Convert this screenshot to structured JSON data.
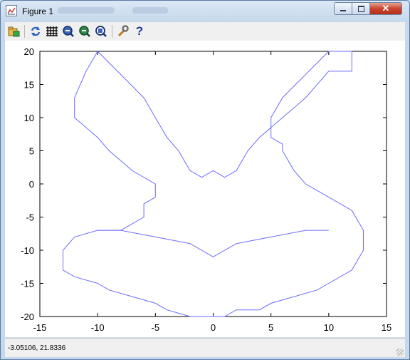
{
  "window": {
    "title": "Figure 1",
    "icons": {
      "app": "figure-app-icon",
      "minimize": "minimize-icon",
      "maximize": "maximize-icon",
      "close": "close-icon"
    }
  },
  "toolbar": {
    "icons": [
      "open-folder-icon",
      "refresh-icon",
      "grid-icon",
      "zoom-in-icon",
      "zoom-out-icon",
      "zoom-fit-icon",
      "settings-wrench-icon",
      "help-icon"
    ]
  },
  "status": {
    "coordinates": "-3.05106,  21.8336"
  },
  "chart_data": {
    "type": "line",
    "title": "",
    "xlabel": "",
    "ylabel": "",
    "xlim": [
      -15,
      15
    ],
    "ylim": [
      -20,
      20
    ],
    "xticks": [
      -15,
      -10,
      -5,
      0,
      5,
      10,
      15
    ],
    "yticks": [
      -20,
      -15,
      -10,
      -5,
      0,
      5,
      10,
      15,
      20
    ],
    "xtick_labels": [
      "-15",
      "-10",
      "-5",
      "0",
      "5",
      "10",
      "15"
    ],
    "ytick_labels": [
      "-20",
      "-15",
      "-10",
      "-5",
      "0",
      "5",
      "10",
      "15",
      "20"
    ],
    "grid": false,
    "line_color": "#6b6bff",
    "series": [
      {
        "x": [
          0,
          1,
          2,
          3,
          4,
          6,
          8,
          10,
          12,
          12,
          11,
          10,
          6,
          5,
          5,
          6,
          6,
          7,
          8,
          10,
          12,
          13,
          13,
          12,
          10,
          9,
          7,
          5,
          4,
          2,
          1,
          0,
          -1,
          -2,
          -4,
          -5,
          -7,
          -9,
          -10,
          -12,
          -13,
          -13,
          -12,
          -10,
          -9,
          -8,
          -7,
          -6,
          -6,
          -5,
          -5,
          -7,
          -9,
          -10,
          -12,
          -12,
          -11,
          -10,
          -6,
          -5,
          -4,
          -3,
          -2,
          -1,
          0
        ],
        "y": [
          2,
          1,
          2,
          5,
          7,
          10,
          13,
          17,
          17,
          20,
          20,
          20,
          13,
          10,
          7,
          6,
          5,
          2,
          0,
          -2,
          -4,
          -7,
          -10,
          -13,
          -15,
          -16,
          -17,
          -18,
          -19,
          -19,
          -20,
          -20,
          -20,
          -20,
          -19,
          -18,
          -17,
          -16,
          -15,
          -14,
          -13,
          -10,
          -8,
          -7,
          -7,
          -7,
          -6,
          -5,
          -3,
          -2,
          0,
          2,
          5,
          7,
          10,
          13,
          17,
          20,
          13,
          10,
          7,
          5,
          2,
          1,
          2
        ]
      },
      {
        "x": [
          -8,
          -10,
          -8,
          -5,
          -2,
          0,
          2,
          5,
          8,
          10,
          8
        ],
        "y": [
          -7,
          -7,
          -7,
          -8,
          -9,
          -11,
          -9,
          -8,
          -7,
          -7,
          -7
        ]
      }
    ]
  }
}
